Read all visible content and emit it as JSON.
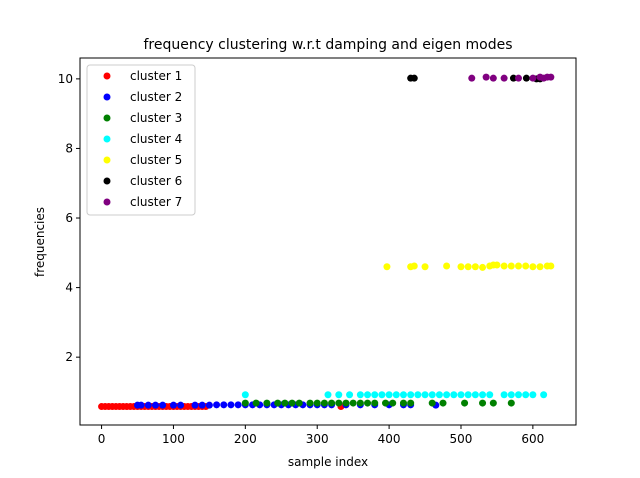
{
  "chart_data": {
    "type": "scatter",
    "title": "frequency clustering w.r.t damping and eigen modes",
    "xlabel": "sample index",
    "ylabel": "frequencies",
    "xlim": [
      -30,
      660
    ],
    "ylim": [
      0.05,
      10.6
    ],
    "xticks": [
      0,
      100,
      200,
      300,
      400,
      500,
      600
    ],
    "yticks": [
      2,
      4,
      6,
      8,
      10
    ],
    "grid": false,
    "legend_position": "top-left",
    "series": [
      {
        "name": "cluster 1",
        "color": "#ff0000",
        "points": [
          [
            0,
            0.58
          ],
          [
            5,
            0.58
          ],
          [
            10,
            0.58
          ],
          [
            15,
            0.58
          ],
          [
            20,
            0.58
          ],
          [
            25,
            0.58
          ],
          [
            30,
            0.58
          ],
          [
            35,
            0.58
          ],
          [
            40,
            0.58
          ],
          [
            45,
            0.58
          ],
          [
            50,
            0.58
          ],
          [
            55,
            0.58
          ],
          [
            60,
            0.58
          ],
          [
            65,
            0.58
          ],
          [
            70,
            0.58
          ],
          [
            75,
            0.58
          ],
          [
            80,
            0.58
          ],
          [
            85,
            0.58
          ],
          [
            90,
            0.58
          ],
          [
            95,
            0.58
          ],
          [
            100,
            0.58
          ],
          [
            105,
            0.58
          ],
          [
            110,
            0.58
          ],
          [
            115,
            0.58
          ],
          [
            120,
            0.58
          ],
          [
            125,
            0.58
          ],
          [
            130,
            0.58
          ],
          [
            135,
            0.58
          ],
          [
            140,
            0.58
          ],
          [
            145,
            0.58
          ],
          [
            333,
            0.58
          ]
        ]
      },
      {
        "name": "cluster 2",
        "color": "#0000ff",
        "points": [
          [
            50,
            0.62
          ],
          [
            55,
            0.62
          ],
          [
            65,
            0.62
          ],
          [
            75,
            0.62
          ],
          [
            85,
            0.62
          ],
          [
            100,
            0.62
          ],
          [
            110,
            0.62
          ],
          [
            130,
            0.62
          ],
          [
            140,
            0.62
          ],
          [
            150,
            0.62
          ],
          [
            160,
            0.63
          ],
          [
            170,
            0.63
          ],
          [
            180,
            0.63
          ],
          [
            190,
            0.63
          ],
          [
            200,
            0.63
          ],
          [
            210,
            0.63
          ],
          [
            220,
            0.63
          ],
          [
            230,
            0.63
          ],
          [
            240,
            0.63
          ],
          [
            250,
            0.63
          ],
          [
            260,
            0.63
          ],
          [
            270,
            0.63
          ],
          [
            280,
            0.63
          ],
          [
            290,
            0.63
          ],
          [
            300,
            0.63
          ],
          [
            310,
            0.63
          ],
          [
            320,
            0.63
          ],
          [
            340,
            0.63
          ],
          [
            360,
            0.63
          ],
          [
            380,
            0.63
          ],
          [
            400,
            0.63
          ],
          [
            420,
            0.63
          ],
          [
            430,
            0.63
          ],
          [
            465,
            0.62
          ]
        ]
      },
      {
        "name": "cluster 3",
        "color": "#008000",
        "points": [
          [
            200,
            0.68
          ],
          [
            215,
            0.68
          ],
          [
            230,
            0.68
          ],
          [
            245,
            0.68
          ],
          [
            255,
            0.68
          ],
          [
            265,
            0.68
          ],
          [
            275,
            0.68
          ],
          [
            290,
            0.68
          ],
          [
            300,
            0.68
          ],
          [
            310,
            0.68
          ],
          [
            320,
            0.68
          ],
          [
            330,
            0.68
          ],
          [
            340,
            0.68
          ],
          [
            350,
            0.68
          ],
          [
            360,
            0.68
          ],
          [
            370,
            0.68
          ],
          [
            380,
            0.68
          ],
          [
            395,
            0.68
          ],
          [
            405,
            0.68
          ],
          [
            420,
            0.68
          ],
          [
            430,
            0.68
          ],
          [
            460,
            0.68
          ],
          [
            475,
            0.68
          ],
          [
            505,
            0.68
          ],
          [
            530,
            0.68
          ],
          [
            545,
            0.68
          ],
          [
            570,
            0.68
          ]
        ]
      },
      {
        "name": "cluster 4",
        "color": "#00ffff",
        "points": [
          [
            200,
            0.92
          ],
          [
            315,
            0.92
          ],
          [
            330,
            0.92
          ],
          [
            345,
            0.92
          ],
          [
            360,
            0.92
          ],
          [
            370,
            0.92
          ],
          [
            380,
            0.92
          ],
          [
            390,
            0.92
          ],
          [
            400,
            0.92
          ],
          [
            410,
            0.92
          ],
          [
            420,
            0.92
          ],
          [
            430,
            0.92
          ],
          [
            440,
            0.92
          ],
          [
            450,
            0.92
          ],
          [
            460,
            0.92
          ],
          [
            470,
            0.92
          ],
          [
            480,
            0.92
          ],
          [
            490,
            0.92
          ],
          [
            500,
            0.92
          ],
          [
            510,
            0.92
          ],
          [
            520,
            0.92
          ],
          [
            530,
            0.92
          ],
          [
            540,
            0.92
          ],
          [
            560,
            0.92
          ],
          [
            570,
            0.92
          ],
          [
            580,
            0.92
          ],
          [
            590,
            0.92
          ],
          [
            600,
            0.92
          ],
          [
            615,
            0.92
          ]
        ]
      },
      {
        "name": "cluster 5",
        "color": "#ffff00",
        "points": [
          [
            397,
            4.6
          ],
          [
            430,
            4.6
          ],
          [
            435,
            4.62
          ],
          [
            450,
            4.6
          ],
          [
            480,
            4.62
          ],
          [
            500,
            4.6
          ],
          [
            510,
            4.6
          ],
          [
            520,
            4.6
          ],
          [
            530,
            4.58
          ],
          [
            540,
            4.62
          ],
          [
            545,
            4.65
          ],
          [
            550,
            4.65
          ],
          [
            560,
            4.62
          ],
          [
            570,
            4.62
          ],
          [
            580,
            4.62
          ],
          [
            590,
            4.62
          ],
          [
            600,
            4.6
          ],
          [
            610,
            4.6
          ],
          [
            620,
            4.62
          ],
          [
            625,
            4.62
          ]
        ]
      },
      {
        "name": "cluster 6",
        "color": "#000000",
        "points": [
          [
            430,
            10.02
          ],
          [
            435,
            10.02
          ],
          [
            573,
            10.02
          ],
          [
            591,
            10.02
          ],
          [
            605,
            10.0
          ],
          [
            610,
            10.0
          ]
        ]
      },
      {
        "name": "cluster 7",
        "color": "#800080",
        "points": [
          [
            515,
            10.02
          ],
          [
            535,
            10.05
          ],
          [
            545,
            10.02
          ],
          [
            560,
            10.02
          ],
          [
            580,
            10.02
          ],
          [
            600,
            10.02
          ],
          [
            610,
            10.05
          ],
          [
            615,
            10.02
          ],
          [
            620,
            10.05
          ],
          [
            625,
            10.05
          ]
        ]
      }
    ]
  }
}
